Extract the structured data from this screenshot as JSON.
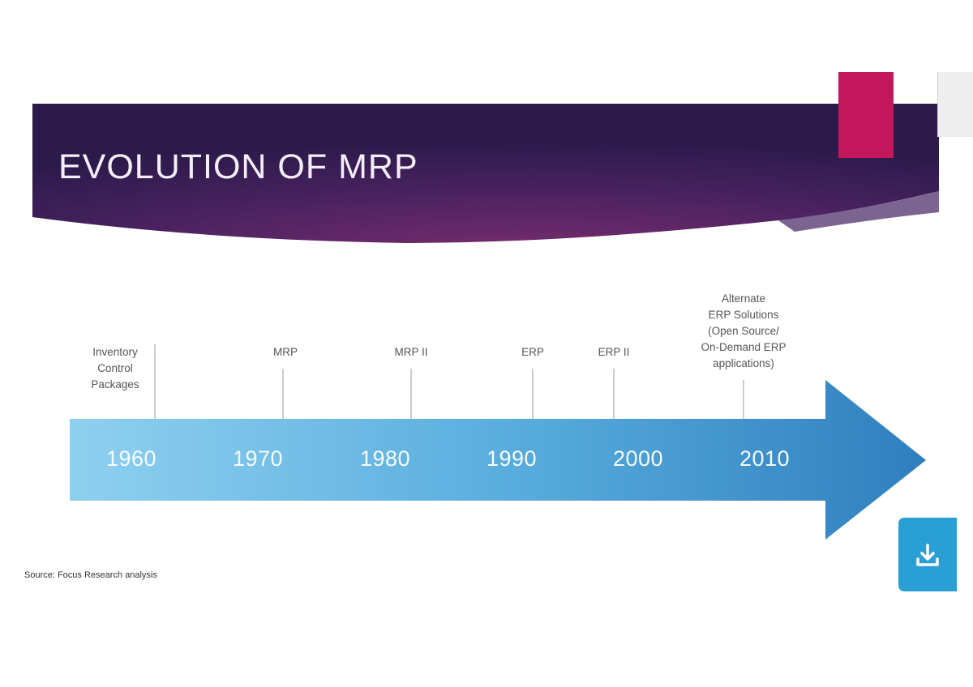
{
  "slide": {
    "title": "EVOLUTION OF MRP",
    "source": "Source:  Focus Research analysis"
  },
  "timeline": {
    "milestones": [
      {
        "label": "Inventory\nControl\nPackages"
      },
      {
        "label": "MRP"
      },
      {
        "label": "MRP II"
      },
      {
        "label": "ERP"
      },
      {
        "label": "ERP II"
      },
      {
        "label": "Alternate\nERP Solutions\n(Open Source/\nOn-Demand ERP\napplications)"
      }
    ],
    "years": [
      "1960",
      "1970",
      "1980",
      "1990",
      "2000",
      "2010"
    ]
  },
  "colors": {
    "banner_dark": "#2f1a4f",
    "banner_mid": "#6b2a66",
    "accent": "#c2185b",
    "arrow_light": "#8fd0f0",
    "arrow_dark": "#2f7fbf",
    "download_button": "#2a9fd6"
  },
  "icons": {
    "download": "download-icon"
  }
}
